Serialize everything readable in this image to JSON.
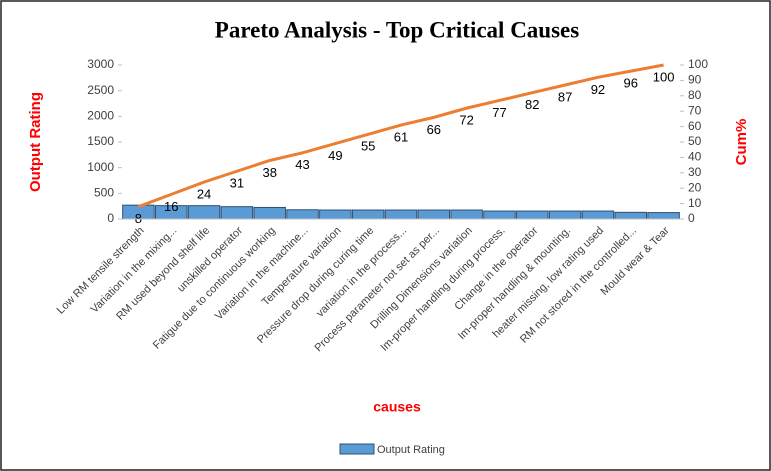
{
  "chart_data": {
    "type": "bar",
    "title": "Pareto Analysis - Top Critical Causes",
    "xlabel": "causes",
    "ylabel": "Output Rating",
    "y2label": "Cum%",
    "categories": [
      "Low RM tensile strength",
      "Variation in the mixing...",
      "RM used beyond shelf life",
      "unskilled operator",
      "Fatigue due to continuous working",
      "Variation in the machine...",
      "Temperature variation",
      "Pressure drop during curing time",
      "variation in the process...",
      "Process parameter not set as per...",
      "Drilling Dimensions variation",
      "Im-proper handling during process.",
      "Change in the operator",
      "Im-proper handling & mounting.",
      "heater missing, low rating used",
      "RM not stored in the controlled...",
      "Mould wear & Tear"
    ],
    "series": [
      {
        "name": "Output Rating",
        "type": "bar",
        "color": "#5b9bd5",
        "values": [
          270,
          260,
          260,
          240,
          225,
          180,
          175,
          175,
          175,
          175,
          175,
          155,
          155,
          155,
          155,
          130,
          125
        ]
      },
      {
        "type": "line",
        "axis": "y2",
        "color": "#ed7d31",
        "values": [
          8,
          16,
          24,
          31,
          38,
          43,
          49,
          55,
          61,
          66,
          72,
          77,
          82,
          87,
          92,
          96,
          100
        ]
      }
    ],
    "ylim": [
      0,
      3000
    ],
    "yticks": [
      0,
      500,
      1000,
      1500,
      2000,
      2500,
      3000
    ],
    "y2lim": [
      0,
      100
    ],
    "y2ticks": [
      0,
      10,
      20,
      30,
      40,
      50,
      60,
      70,
      80,
      90,
      100
    ],
    "legend": "bottom"
  }
}
